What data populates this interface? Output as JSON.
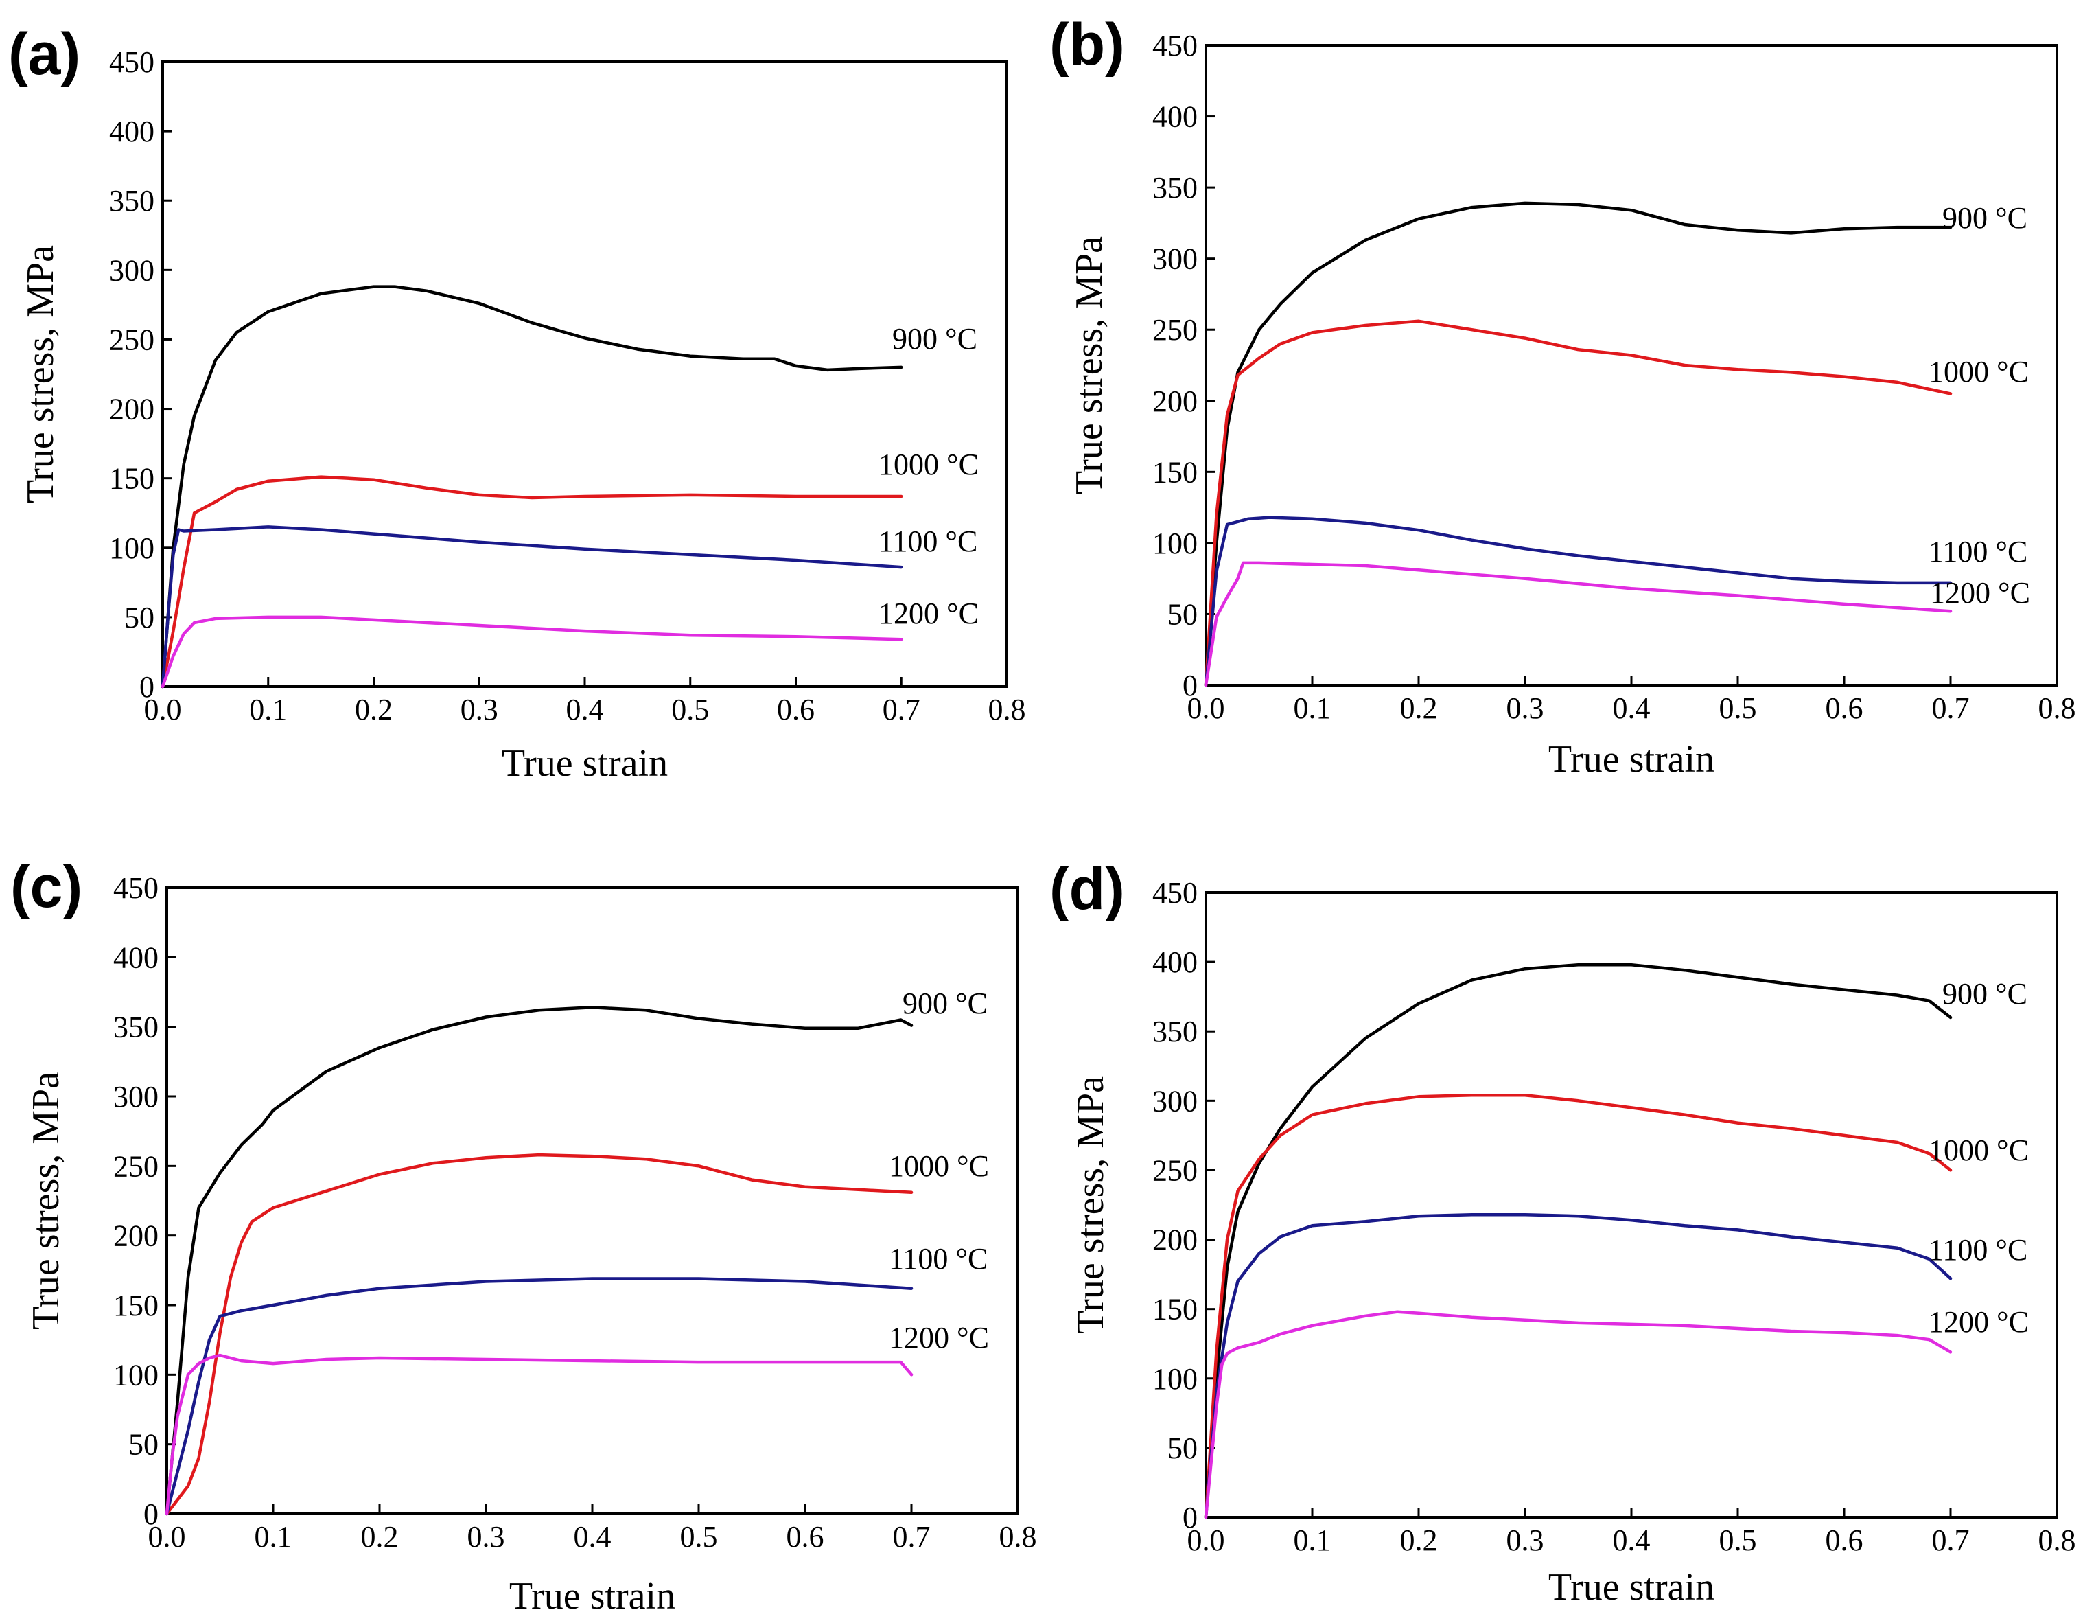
{
  "figure": {
    "colors": {
      "900 °C": "#000000",
      "1000 °C": "#e0191d",
      "1100 °C": "#1a1a8a",
      "1200 °C": "#e02ce0"
    }
  },
  "chart_data": [
    {
      "type": "line",
      "panel": "(a)",
      "xlabel": "True strain",
      "ylabel": "True stress, MPa",
      "xlim": [
        0.0,
        0.8
      ],
      "ylim": [
        0,
        450
      ],
      "xticks": [
        "0.0",
        "0.1",
        "0.2",
        "0.3",
        "0.4",
        "0.5",
        "0.6",
        "0.7",
        "0.8"
      ],
      "yticks": [
        "0",
        "50",
        "100",
        "150",
        "200",
        "250",
        "300",
        "350",
        "400",
        "450"
      ],
      "series": [
        {
          "name": "900 °C",
          "label": "900 °C",
          "color_key": "900 °C",
          "x": [
            0.0,
            0.01,
            0.02,
            0.03,
            0.05,
            0.07,
            0.1,
            0.15,
            0.2,
            0.22,
            0.25,
            0.3,
            0.35,
            0.4,
            0.45,
            0.5,
            0.55,
            0.58,
            0.6,
            0.63,
            0.66,
            0.7
          ],
          "y": [
            0,
            100,
            160,
            195,
            235,
            255,
            270,
            283,
            288,
            288,
            285,
            276,
            262,
            251,
            243,
            238,
            236,
            236,
            231,
            228,
            229,
            230
          ]
        },
        {
          "name": "1000 °C",
          "label": "1000 °C",
          "color_key": "1000 °C",
          "x": [
            0.0,
            0.01,
            0.02,
            0.03,
            0.05,
            0.07,
            0.1,
            0.15,
            0.2,
            0.25,
            0.3,
            0.35,
            0.4,
            0.5,
            0.6,
            0.7
          ],
          "y": [
            0,
            40,
            85,
            125,
            133,
            142,
            148,
            151,
            149,
            143,
            138,
            136,
            137,
            138,
            137,
            137
          ]
        },
        {
          "name": "1100 °C",
          "label": "1100 °C",
          "color_key": "1100 °C",
          "x": [
            0.0,
            0.005,
            0.01,
            0.015,
            0.02,
            0.05,
            0.1,
            0.15,
            0.2,
            0.3,
            0.4,
            0.5,
            0.6,
            0.7
          ],
          "y": [
            0,
            50,
            95,
            113,
            112,
            113,
            115,
            113,
            110,
            104,
            99,
            95,
            91,
            86
          ]
        },
        {
          "name": "1200 °C",
          "label": "1200 °C",
          "color_key": "1200 °C",
          "x": [
            0.0,
            0.01,
            0.02,
            0.03,
            0.05,
            0.1,
            0.15,
            0.2,
            0.3,
            0.4,
            0.5,
            0.6,
            0.7
          ],
          "y": [
            0,
            22,
            38,
            46,
            49,
            50,
            50,
            48,
            44,
            40,
            37,
            36,
            34
          ]
        }
      ]
    },
    {
      "type": "line",
      "panel": "(b)",
      "xlabel": "True strain",
      "ylabel": "True stress, MPa",
      "xlim": [
        0.0,
        0.8
      ],
      "ylim": [
        0,
        450
      ],
      "xticks": [
        "0.0",
        "0.1",
        "0.2",
        "0.3",
        "0.4",
        "0.5",
        "0.6",
        "0.7",
        "0.8"
      ],
      "yticks": [
        "0",
        "50",
        "100",
        "150",
        "200",
        "250",
        "300",
        "350",
        "400",
        "450"
      ],
      "series": [
        {
          "name": "900 °C",
          "label": "900 °C",
          "color_key": "900 °C",
          "x": [
            0.0,
            0.01,
            0.02,
            0.03,
            0.05,
            0.07,
            0.1,
            0.15,
            0.2,
            0.25,
            0.3,
            0.35,
            0.4,
            0.45,
            0.5,
            0.55,
            0.6,
            0.65,
            0.7
          ],
          "y": [
            0,
            100,
            180,
            220,
            250,
            268,
            290,
            313,
            328,
            336,
            339,
            338,
            334,
            324,
            320,
            318,
            321,
            322,
            322
          ]
        },
        {
          "name": "1000 °C",
          "label": "1000 °C",
          "color_key": "1000 °C",
          "x": [
            0.0,
            0.01,
            0.02,
            0.03,
            0.05,
            0.07,
            0.1,
            0.15,
            0.2,
            0.25,
            0.3,
            0.35,
            0.4,
            0.45,
            0.5,
            0.55,
            0.6,
            0.65,
            0.7
          ],
          "y": [
            0,
            120,
            190,
            218,
            230,
            240,
            248,
            253,
            256,
            250,
            244,
            236,
            232,
            225,
            222,
            220,
            217,
            213,
            205
          ]
        },
        {
          "name": "1100 °C",
          "label": "1100 °C",
          "color_key": "1100 °C",
          "x": [
            0.0,
            0.005,
            0.01,
            0.02,
            0.04,
            0.06,
            0.1,
            0.15,
            0.2,
            0.25,
            0.3,
            0.35,
            0.4,
            0.45,
            0.5,
            0.55,
            0.6,
            0.65,
            0.7
          ],
          "y": [
            0,
            40,
            80,
            113,
            117,
            118,
            117,
            114,
            109,
            102,
            96,
            91,
            87,
            83,
            79,
            75,
            73,
            72,
            72
          ]
        },
        {
          "name": "1200 °C",
          "label": "1200 °C",
          "color_key": "1200 °C",
          "x": [
            0.0,
            0.01,
            0.02,
            0.03,
            0.035,
            0.05,
            0.1,
            0.15,
            0.2,
            0.3,
            0.4,
            0.5,
            0.6,
            0.7
          ],
          "y": [
            0,
            48,
            62,
            75,
            86,
            86,
            85,
            84,
            81,
            75,
            68,
            63,
            57,
            52
          ]
        }
      ]
    },
    {
      "type": "line",
      "panel": "(c)",
      "xlabel": "True strain",
      "ylabel": "True stress, MPa",
      "xlim": [
        0.0,
        0.8
      ],
      "ylim": [
        0,
        450
      ],
      "xticks": [
        "0.0",
        "0.1",
        "0.2",
        "0.3",
        "0.4",
        "0.5",
        "0.6",
        "0.7",
        "0.8"
      ],
      "yticks": [
        "0",
        "50",
        "100",
        "150",
        "200",
        "250",
        "300",
        "350",
        "400",
        "450"
      ],
      "series": [
        {
          "name": "900 °C",
          "label": "900 °C",
          "color_key": "900 °C",
          "x": [
            0.0,
            0.01,
            0.02,
            0.03,
            0.05,
            0.07,
            0.09,
            0.1,
            0.15,
            0.2,
            0.25,
            0.3,
            0.35,
            0.4,
            0.45,
            0.5,
            0.55,
            0.6,
            0.65,
            0.69,
            0.7
          ],
          "y": [
            0,
            80,
            170,
            220,
            245,
            265,
            280,
            290,
            318,
            335,
            348,
            357,
            362,
            364,
            362,
            356,
            352,
            349,
            349,
            355,
            351
          ]
        },
        {
          "name": "1000 °C",
          "label": "1000 °C",
          "color_key": "1000 °C",
          "x": [
            0.0,
            0.02,
            0.03,
            0.04,
            0.05,
            0.06,
            0.07,
            0.08,
            0.1,
            0.15,
            0.2,
            0.25,
            0.3,
            0.35,
            0.4,
            0.45,
            0.5,
            0.55,
            0.6,
            0.65,
            0.7
          ],
          "y": [
            0,
            20,
            40,
            80,
            130,
            170,
            195,
            210,
            220,
            232,
            244,
            252,
            256,
            258,
            257,
            255,
            250,
            240,
            235,
            233,
            231
          ]
        },
        {
          "name": "1100 °C",
          "label": "1100 °C",
          "color_key": "1100 °C",
          "x": [
            0.0,
            0.01,
            0.02,
            0.03,
            0.04,
            0.05,
            0.07,
            0.1,
            0.15,
            0.2,
            0.3,
            0.4,
            0.5,
            0.6,
            0.7
          ],
          "y": [
            0,
            30,
            60,
            95,
            125,
            142,
            146,
            150,
            157,
            162,
            167,
            169,
            169,
            167,
            162
          ]
        },
        {
          "name": "1200 °C",
          "label": "1200 °C",
          "color_key": "1200 °C",
          "x": [
            0.0,
            0.005,
            0.01,
            0.02,
            0.03,
            0.04,
            0.05,
            0.07,
            0.1,
            0.15,
            0.2,
            0.3,
            0.4,
            0.5,
            0.6,
            0.69,
            0.7
          ],
          "y": [
            0,
            40,
            70,
            100,
            108,
            112,
            114,
            110,
            108,
            111,
            112,
            111,
            110,
            109,
            109,
            109,
            100
          ]
        }
      ]
    },
    {
      "type": "line",
      "panel": "(d)",
      "xlabel": "True strain",
      "ylabel": "True stress, MPa",
      "xlim": [
        0.0,
        0.8
      ],
      "ylim": [
        0,
        450
      ],
      "xticks": [
        "0.0",
        "0.1",
        "0.2",
        "0.3",
        "0.4",
        "0.5",
        "0.6",
        "0.7",
        "0.8"
      ],
      "yticks": [
        "0",
        "50",
        "100",
        "150",
        "200",
        "250",
        "300",
        "350",
        "400",
        "450"
      ],
      "series": [
        {
          "name": "900 °C",
          "label": "900 °C",
          "color_key": "900 °C",
          "x": [
            0.0,
            0.01,
            0.02,
            0.03,
            0.05,
            0.07,
            0.1,
            0.15,
            0.2,
            0.25,
            0.3,
            0.35,
            0.4,
            0.45,
            0.5,
            0.55,
            0.6,
            0.65,
            0.68,
            0.7
          ],
          "y": [
            0,
            100,
            180,
            220,
            255,
            280,
            310,
            345,
            370,
            387,
            395,
            398,
            398,
            394,
            389,
            384,
            380,
            376,
            372,
            360
          ]
        },
        {
          "name": "1000 °C",
          "label": "1000 °C",
          "color_key": "1000 °C",
          "x": [
            0.0,
            0.01,
            0.02,
            0.03,
            0.05,
            0.07,
            0.1,
            0.15,
            0.2,
            0.25,
            0.3,
            0.35,
            0.4,
            0.45,
            0.5,
            0.55,
            0.6,
            0.65,
            0.68,
            0.7
          ],
          "y": [
            0,
            120,
            200,
            235,
            258,
            275,
            290,
            298,
            303,
            304,
            304,
            300,
            295,
            290,
            284,
            280,
            275,
            270,
            262,
            250
          ]
        },
        {
          "name": "1100 °C",
          "label": "1100 °C",
          "color_key": "1100 °C",
          "x": [
            0.0,
            0.01,
            0.02,
            0.03,
            0.05,
            0.07,
            0.1,
            0.15,
            0.2,
            0.25,
            0.3,
            0.35,
            0.4,
            0.45,
            0.5,
            0.55,
            0.6,
            0.65,
            0.68,
            0.7
          ],
          "y": [
            0,
            90,
            140,
            170,
            190,
            202,
            210,
            213,
            217,
            218,
            218,
            217,
            214,
            210,
            207,
            202,
            198,
            194,
            186,
            172
          ]
        },
        {
          "name": "1200 °C",
          "label": "1200 °C",
          "color_key": "1200 °C",
          "x": [
            0.0,
            0.01,
            0.015,
            0.02,
            0.03,
            0.05,
            0.07,
            0.1,
            0.15,
            0.18,
            0.2,
            0.25,
            0.3,
            0.35,
            0.4,
            0.45,
            0.5,
            0.55,
            0.6,
            0.65,
            0.68,
            0.7
          ],
          "y": [
            0,
            80,
            110,
            118,
            122,
            126,
            132,
            138,
            145,
            148,
            147,
            144,
            142,
            140,
            139,
            138,
            136,
            134,
            133,
            131,
            128,
            119
          ]
        }
      ]
    }
  ]
}
